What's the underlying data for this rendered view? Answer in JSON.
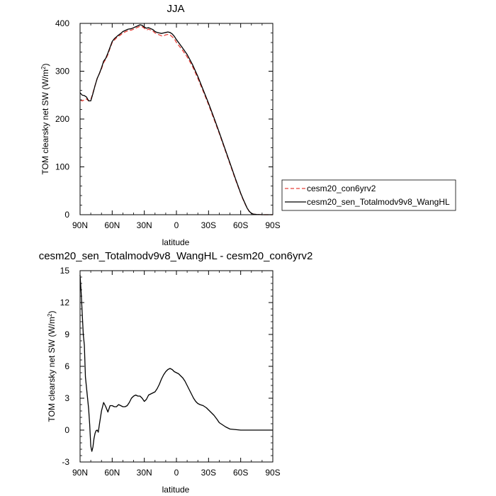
{
  "chart_data": [
    {
      "type": "line",
      "title": "JJA",
      "xlabel": "latitude",
      "ylabel_main": "TOM clearsky net SW (W/m",
      "ylabel_sup": "2",
      "ylabel_tail": ")",
      "xlim": [
        90,
        -90
      ],
      "ylim": [
        0,
        400
      ],
      "x_ticks": [
        90,
        60,
        30,
        0,
        -30,
        -60,
        -90
      ],
      "x_tick_labels": [
        "90N",
        "60N",
        "30N",
        "0",
        "30S",
        "60S",
        "90S"
      ],
      "y_ticks": [
        0,
        100,
        200,
        300,
        400
      ],
      "y_tick_labels": [
        "0",
        "100",
        "200",
        "300",
        "400"
      ],
      "legend_position": "right",
      "series": [
        {
          "name": "cesm20_con6yrv2",
          "color": "#e8413a",
          "dashed": true,
          "x": [
            90,
            88,
            86,
            84,
            82,
            80,
            78,
            76,
            74,
            72,
            70,
            68,
            66,
            64,
            62,
            60,
            58,
            55,
            52,
            50,
            48,
            45,
            42,
            40,
            38,
            36,
            34,
            32,
            30,
            28,
            26,
            24,
            22,
            20,
            18,
            16,
            14,
            12,
            10,
            8,
            6,
            4,
            2,
            0,
            -5,
            -10,
            -15,
            -20,
            -25,
            -30,
            -35,
            -40,
            -45,
            -50,
            -55,
            -60,
            -62,
            -64,
            -66,
            -68,
            -70,
            -72,
            -75,
            -80,
            -85,
            -90
          ],
          "y": [
            240,
            238,
            240,
            242,
            238,
            240,
            255,
            270,
            285,
            295,
            305,
            318,
            325,
            335,
            348,
            360,
            365,
            372,
            376,
            380,
            382,
            385,
            386,
            388,
            390,
            392,
            394,
            393,
            390,
            386,
            388,
            386,
            384,
            380,
            378,
            376,
            374,
            374,
            376,
            377,
            376,
            372,
            368,
            360,
            346,
            330,
            310,
            285,
            258,
            230,
            200,
            170,
            138,
            106,
            74,
            44,
            33,
            23,
            14,
            7,
            3,
            1,
            0.5,
            0,
            0,
            0
          ]
        },
        {
          "name": "cesm20_sen_Totalmodv9v8_WangHL",
          "color": "#000000",
          "dashed": false,
          "x": [
            90,
            88,
            86,
            84,
            82,
            80,
            78,
            76,
            74,
            72,
            70,
            68,
            66,
            64,
            62,
            60,
            58,
            55,
            52,
            50,
            48,
            45,
            42,
            40,
            38,
            36,
            34,
            32,
            30,
            28,
            26,
            24,
            22,
            20,
            18,
            16,
            14,
            12,
            10,
            8,
            6,
            4,
            2,
            0,
            -5,
            -10,
            -15,
            -20,
            -25,
            -30,
            -35,
            -40,
            -45,
            -50,
            -55,
            -60,
            -62,
            -64,
            -66,
            -68,
            -70,
            -72,
            -75,
            -80,
            -85,
            -90
          ],
          "y": [
            255,
            250,
            249,
            246,
            238,
            238,
            253,
            270,
            285,
            295,
            307,
            321,
            327,
            338,
            350,
            362,
            368,
            374,
            379,
            383,
            385,
            388,
            389,
            391,
            393,
            395,
            397,
            396,
            392,
            390,
            391,
            389,
            387,
            383,
            381,
            380,
            379,
            380,
            381,
            382,
            381,
            378,
            373,
            366,
            351,
            335,
            314,
            289,
            261,
            233,
            203,
            172,
            140,
            108,
            76,
            45,
            34,
            24,
            14,
            7,
            3,
            1,
            0.5,
            0,
            0,
            0
          ]
        }
      ]
    },
    {
      "type": "line",
      "title": "cesm20_sen_Totalmodv9v8_WangHL - cesm20_con6yrv2",
      "xlabel": "latitude",
      "ylabel_main": "TOM clearsky net SW (W/m",
      "ylabel_sup": "2",
      "ylabel_tail": ")",
      "xlim": [
        90,
        -90
      ],
      "ylim": [
        -3,
        15
      ],
      "x_ticks": [
        90,
        60,
        30,
        0,
        -30,
        -60,
        -90
      ],
      "x_tick_labels": [
        "90N",
        "60N",
        "30N",
        "0",
        "30S",
        "60S",
        "90S"
      ],
      "y_ticks": [
        -3,
        0,
        3,
        6,
        9,
        12,
        15
      ],
      "y_tick_labels": [
        "-3",
        "0",
        "3",
        "6",
        "9",
        "12",
        "15"
      ],
      "series": [
        {
          "color": "#000000",
          "dashed": false,
          "x": [
            90,
            89,
            88,
            87,
            86,
            85,
            84,
            83,
            82,
            81,
            80,
            79,
            78,
            77,
            76,
            75,
            74,
            73,
            72,
            70,
            68,
            66,
            64,
            62,
            60,
            58,
            56,
            54,
            52,
            50,
            48,
            46,
            44,
            42,
            40,
            38,
            36,
            34,
            32,
            30,
            28,
            26,
            24,
            22,
            20,
            18,
            16,
            14,
            12,
            10,
            8,
            6,
            4,
            2,
            0,
            -2,
            -4,
            -6,
            -8,
            -10,
            -12,
            -14,
            -16,
            -18,
            -20,
            -22,
            -25,
            -28,
            -30,
            -32,
            -35,
            -38,
            -40,
            -43,
            -46,
            -50,
            -55,
            -60,
            -65,
            -68,
            -70,
            -75,
            -80,
            -85,
            -90
          ],
          "y": [
            14.6,
            13,
            11,
            9,
            8,
            5,
            4,
            3,
            2,
            0.5,
            -1.5,
            -2.0,
            -1.6,
            -0.8,
            -0.3,
            -0.05,
            0,
            -0.2,
            0.5,
            1.8,
            2.6,
            2.2,
            1.7,
            2.3,
            2.3,
            2.2,
            2.2,
            2.4,
            2.3,
            2.2,
            2.2,
            2.3,
            2.6,
            3.0,
            3.2,
            3.3,
            3.2,
            3.2,
            3.0,
            2.7,
            2.9,
            3.3,
            3.4,
            3.5,
            3.6,
            3.9,
            4.3,
            4.8,
            5.2,
            5.5,
            5.7,
            5.8,
            5.7,
            5.5,
            5.4,
            5.3,
            5.1,
            4.9,
            4.6,
            4.2,
            3.8,
            3.4,
            3.0,
            2.7,
            2.5,
            2.4,
            2.3,
            2.1,
            1.9,
            1.7,
            1.4,
            1.0,
            0.7,
            0.5,
            0.3,
            0.1,
            0.05,
            0,
            0,
            0,
            0,
            0,
            0,
            0,
            0
          ]
        }
      ]
    }
  ]
}
